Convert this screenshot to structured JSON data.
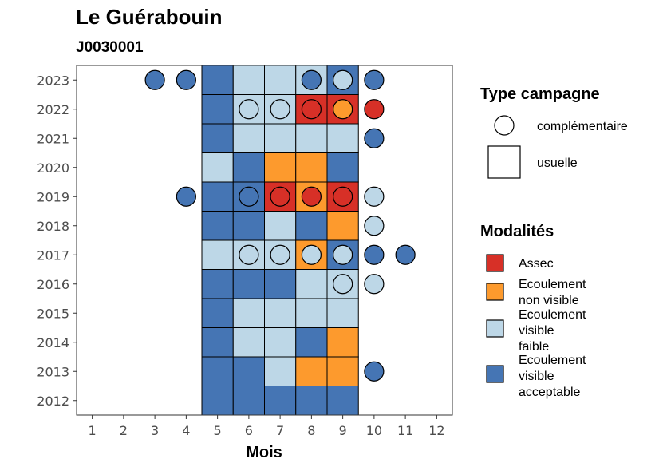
{
  "chart_data": {
    "type": "heatmap",
    "title": "Le Guérabouin",
    "subtitle": "J0030001",
    "xlabel": "Mois",
    "ylabel": "",
    "x_ticks": [
      "1",
      "2",
      "3",
      "4",
      "5",
      "6",
      "7",
      "8",
      "9",
      "10",
      "11",
      "12"
    ],
    "y_ticks": [
      "2012",
      "2013",
      "2014",
      "2015",
      "2016",
      "2017",
      "2018",
      "2019",
      "2020",
      "2021",
      "2022",
      "2023"
    ],
    "xlim": [
      0.5,
      12.5
    ],
    "ylim": [
      2011.5,
      2023.5
    ],
    "modalites": [
      {
        "key": "assec",
        "label": "Assec",
        "color": "#d73027"
      },
      {
        "key": "enva",
        "label": "Ecoulement non visible",
        "color": "#fd9a2d"
      },
      {
        "key": "evf",
        "label": "Ecoulement visible faible",
        "color": "#bdd7e7"
      },
      {
        "key": "eva",
        "label": "Ecoulement visible acceptable",
        "color": "#4575b4"
      }
    ],
    "legend_type": {
      "title": "Type campagne",
      "items": [
        {
          "shape": "circle",
          "label": "complémentaire"
        },
        {
          "shape": "square",
          "label": "usuelle"
        }
      ]
    },
    "legend_modalites_title": "Modalités",
    "usuelle": [
      {
        "year": 2023,
        "month": 5,
        "m": "eva"
      },
      {
        "year": 2023,
        "month": 6,
        "m": "evf"
      },
      {
        "year": 2023,
        "month": 7,
        "m": "evf"
      },
      {
        "year": 2023,
        "month": 8,
        "m": "evf"
      },
      {
        "year": 2023,
        "month": 9,
        "m": "eva"
      },
      {
        "year": 2022,
        "month": 5,
        "m": "eva"
      },
      {
        "year": 2022,
        "month": 6,
        "m": "evf"
      },
      {
        "year": 2022,
        "month": 7,
        "m": "evf"
      },
      {
        "year": 2022,
        "month": 8,
        "m": "assec"
      },
      {
        "year": 2022,
        "month": 9,
        "m": "assec"
      },
      {
        "year": 2021,
        "month": 5,
        "m": "eva"
      },
      {
        "year": 2021,
        "month": 6,
        "m": "evf"
      },
      {
        "year": 2021,
        "month": 7,
        "m": "evf"
      },
      {
        "year": 2021,
        "month": 8,
        "m": "evf"
      },
      {
        "year": 2021,
        "month": 9,
        "m": "evf"
      },
      {
        "year": 2020,
        "month": 5,
        "m": "evf"
      },
      {
        "year": 2020,
        "month": 6,
        "m": "eva"
      },
      {
        "year": 2020,
        "month": 7,
        "m": "enva"
      },
      {
        "year": 2020,
        "month": 8,
        "m": "enva"
      },
      {
        "year": 2020,
        "month": 9,
        "m": "eva"
      },
      {
        "year": 2019,
        "month": 5,
        "m": "eva"
      },
      {
        "year": 2019,
        "month": 6,
        "m": "eva"
      },
      {
        "year": 2019,
        "month": 7,
        "m": "assec"
      },
      {
        "year": 2019,
        "month": 8,
        "m": "enva"
      },
      {
        "year": 2019,
        "month": 9,
        "m": "assec"
      },
      {
        "year": 2018,
        "month": 5,
        "m": "eva"
      },
      {
        "year": 2018,
        "month": 6,
        "m": "eva"
      },
      {
        "year": 2018,
        "month": 7,
        "m": "evf"
      },
      {
        "year": 2018,
        "month": 8,
        "m": "eva"
      },
      {
        "year": 2018,
        "month": 9,
        "m": "enva"
      },
      {
        "year": 2017,
        "month": 5,
        "m": "evf"
      },
      {
        "year": 2017,
        "month": 6,
        "m": "evf"
      },
      {
        "year": 2017,
        "month": 7,
        "m": "evf"
      },
      {
        "year": 2017,
        "month": 8,
        "m": "enva"
      },
      {
        "year": 2017,
        "month": 9,
        "m": "eva"
      },
      {
        "year": 2016,
        "month": 5,
        "m": "eva"
      },
      {
        "year": 2016,
        "month": 6,
        "m": "eva"
      },
      {
        "year": 2016,
        "month": 7,
        "m": "eva"
      },
      {
        "year": 2016,
        "month": 8,
        "m": "evf"
      },
      {
        "year": 2016,
        "month": 9,
        "m": "evf"
      },
      {
        "year": 2015,
        "month": 5,
        "m": "eva"
      },
      {
        "year": 2015,
        "month": 6,
        "m": "evf"
      },
      {
        "year": 2015,
        "month": 7,
        "m": "evf"
      },
      {
        "year": 2015,
        "month": 8,
        "m": "evf"
      },
      {
        "year": 2015,
        "month": 9,
        "m": "evf"
      },
      {
        "year": 2014,
        "month": 5,
        "m": "eva"
      },
      {
        "year": 2014,
        "month": 6,
        "m": "evf"
      },
      {
        "year": 2014,
        "month": 7,
        "m": "evf"
      },
      {
        "year": 2014,
        "month": 8,
        "m": "eva"
      },
      {
        "year": 2014,
        "month": 9,
        "m": "enva"
      },
      {
        "year": 2013,
        "month": 5,
        "m": "eva"
      },
      {
        "year": 2013,
        "month": 6,
        "m": "eva"
      },
      {
        "year": 2013,
        "month": 7,
        "m": "evf"
      },
      {
        "year": 2013,
        "month": 8,
        "m": "enva"
      },
      {
        "year": 2013,
        "month": 9,
        "m": "enva"
      },
      {
        "year": 2012,
        "month": 5,
        "m": "eva"
      },
      {
        "year": 2012,
        "month": 6,
        "m": "eva"
      },
      {
        "year": 2012,
        "month": 7,
        "m": "eva"
      },
      {
        "year": 2012,
        "month": 8,
        "m": "eva"
      },
      {
        "year": 2012,
        "month": 9,
        "m": "eva"
      }
    ],
    "complementaire": [
      {
        "year": 2023,
        "month": 3,
        "m": "eva"
      },
      {
        "year": 2023,
        "month": 4,
        "m": "eva"
      },
      {
        "year": 2023,
        "month": 8,
        "m": "eva"
      },
      {
        "year": 2023,
        "month": 9,
        "m": "evf"
      },
      {
        "year": 2023,
        "month": 10,
        "m": "eva"
      },
      {
        "year": 2022,
        "month": 6,
        "m": "evf"
      },
      {
        "year": 2022,
        "month": 7,
        "m": "evf"
      },
      {
        "year": 2022,
        "month": 8,
        "m": "assec"
      },
      {
        "year": 2022,
        "month": 9,
        "m": "enva"
      },
      {
        "year": 2022,
        "month": 10,
        "m": "assec"
      },
      {
        "year": 2021,
        "month": 10,
        "m": "eva"
      },
      {
        "year": 2019,
        "month": 4,
        "m": "eva"
      },
      {
        "year": 2019,
        "month": 6,
        "m": "eva"
      },
      {
        "year": 2019,
        "month": 7,
        "m": "assec"
      },
      {
        "year": 2019,
        "month": 8,
        "m": "assec"
      },
      {
        "year": 2019,
        "month": 9,
        "m": "assec"
      },
      {
        "year": 2019,
        "month": 10,
        "m": "evf"
      },
      {
        "year": 2018,
        "month": 10,
        "m": "evf"
      },
      {
        "year": 2017,
        "month": 6,
        "m": "evf"
      },
      {
        "year": 2017,
        "month": 7,
        "m": "evf"
      },
      {
        "year": 2017,
        "month": 8,
        "m": "evf"
      },
      {
        "year": 2017,
        "month": 9,
        "m": "evf"
      },
      {
        "year": 2017,
        "month": 10,
        "m": "eva"
      },
      {
        "year": 2017,
        "month": 11,
        "m": "eva"
      },
      {
        "year": 2016,
        "month": 9,
        "m": "evf"
      },
      {
        "year": 2016,
        "month": 10,
        "m": "evf"
      },
      {
        "year": 2013,
        "month": 10,
        "m": "eva"
      }
    ]
  }
}
